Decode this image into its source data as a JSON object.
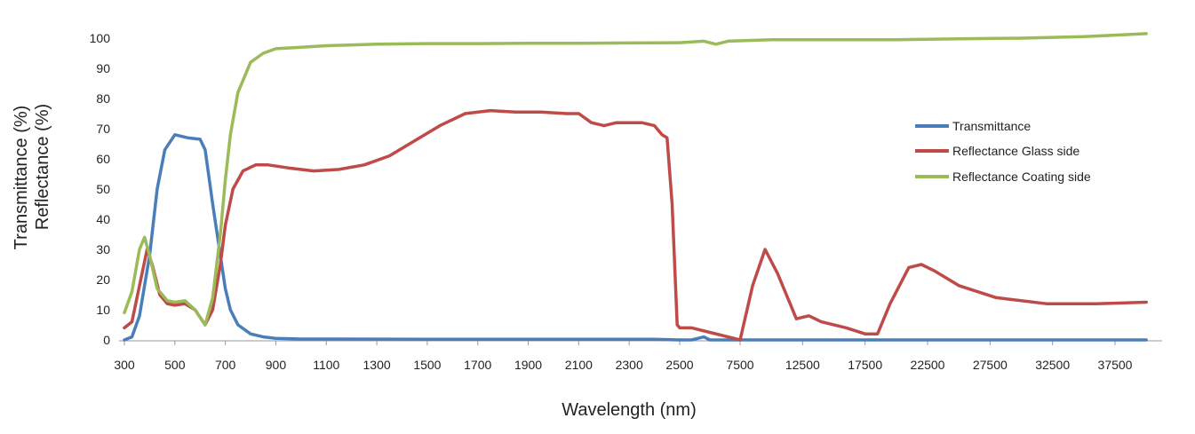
{
  "chart_data": {
    "type": "line",
    "xlabel": "Wavelength (nm)",
    "ylabel_lines": [
      "Transmittance (%)",
      "Reflectance (%)"
    ],
    "ylim": [
      0,
      100
    ],
    "y_ticks": [
      0,
      10,
      20,
      30,
      40,
      50,
      60,
      70,
      80,
      90,
      100
    ],
    "x_segments": [
      {
        "from": 300,
        "to": 2500
      },
      {
        "from": 2500,
        "to": 40000
      }
    ],
    "x_tick_labels": [
      "300",
      "500",
      "700",
      "900",
      "1100",
      "1300",
      "1500",
      "1700",
      "1900",
      "2100",
      "2300",
      "2500",
      "7500",
      "12500",
      "17500",
      "22500",
      "27500",
      "32500",
      "37500"
    ],
    "x_tick_values": [
      300,
      500,
      700,
      900,
      1100,
      1300,
      1500,
      1700,
      1900,
      2100,
      2300,
      2500,
      7500,
      12500,
      17500,
      22500,
      27500,
      32500,
      37500
    ],
    "grid": false,
    "legend_position": "right",
    "series": [
      {
        "name": "Transmittance",
        "color": "#4a7ebb",
        "points": [
          [
            300,
            0
          ],
          [
            330,
            1
          ],
          [
            360,
            8
          ],
          [
            400,
            28
          ],
          [
            430,
            50
          ],
          [
            460,
            63
          ],
          [
            500,
            68
          ],
          [
            550,
            67
          ],
          [
            600,
            66.5
          ],
          [
            620,
            63
          ],
          [
            650,
            45
          ],
          [
            680,
            28
          ],
          [
            700,
            17
          ],
          [
            720,
            10
          ],
          [
            750,
            5
          ],
          [
            800,
            2
          ],
          [
            850,
            1
          ],
          [
            900,
            0.5
          ],
          [
            1000,
            0.3
          ],
          [
            1100,
            0.3
          ],
          [
            1500,
            0.2
          ],
          [
            2000,
            0.2
          ],
          [
            2400,
            0.2
          ],
          [
            2500,
            0
          ],
          [
            3500,
            0
          ],
          [
            4500,
            1
          ],
          [
            5000,
            0
          ],
          [
            10000,
            0
          ],
          [
            20000,
            0
          ],
          [
            30000,
            0
          ],
          [
            40000,
            0
          ]
        ]
      },
      {
        "name": "Reflectance Glass side",
        "color": "#be4b48",
        "points": [
          [
            300,
            4
          ],
          [
            330,
            6
          ],
          [
            360,
            18
          ],
          [
            390,
            30
          ],
          [
            410,
            25
          ],
          [
            440,
            15
          ],
          [
            470,
            12
          ],
          [
            500,
            11.5
          ],
          [
            540,
            12
          ],
          [
            580,
            10
          ],
          [
            620,
            5
          ],
          [
            650,
            10
          ],
          [
            680,
            25
          ],
          [
            700,
            38
          ],
          [
            730,
            50
          ],
          [
            770,
            56
          ],
          [
            820,
            58
          ],
          [
            870,
            58
          ],
          [
            950,
            57
          ],
          [
            1050,
            56
          ],
          [
            1150,
            56.5
          ],
          [
            1250,
            58
          ],
          [
            1350,
            61
          ],
          [
            1450,
            66
          ],
          [
            1550,
            71
          ],
          [
            1650,
            75
          ],
          [
            1750,
            76
          ],
          [
            1850,
            75.5
          ],
          [
            1950,
            75.5
          ],
          [
            2050,
            75
          ],
          [
            2100,
            75
          ],
          [
            2150,
            72
          ],
          [
            2200,
            71
          ],
          [
            2250,
            72
          ],
          [
            2300,
            72
          ],
          [
            2350,
            72
          ],
          [
            2400,
            71
          ],
          [
            2430,
            68
          ],
          [
            2450,
            67
          ],
          [
            2470,
            45
          ],
          [
            2490,
            5
          ],
          [
            2500,
            4
          ],
          [
            3500,
            4
          ],
          [
            5000,
            2.5
          ],
          [
            6500,
            1
          ],
          [
            7500,
            0
          ],
          [
            8500,
            18
          ],
          [
            9500,
            30
          ],
          [
            10500,
            22
          ],
          [
            11500,
            12
          ],
          [
            12000,
            7
          ],
          [
            13000,
            8
          ],
          [
            14000,
            6
          ],
          [
            16000,
            4
          ],
          [
            17500,
            2
          ],
          [
            18500,
            2
          ],
          [
            19500,
            12
          ],
          [
            21000,
            24
          ],
          [
            22000,
            25
          ],
          [
            23000,
            23
          ],
          [
            25000,
            18
          ],
          [
            28000,
            14
          ],
          [
            32000,
            12
          ],
          [
            36000,
            12
          ],
          [
            40000,
            12.5
          ]
        ]
      },
      {
        "name": "Reflectance Coating side",
        "color": "#9bbb59",
        "points": [
          [
            300,
            9
          ],
          [
            330,
            16
          ],
          [
            360,
            30
          ],
          [
            380,
            34
          ],
          [
            400,
            28
          ],
          [
            430,
            17
          ],
          [
            470,
            13
          ],
          [
            500,
            12.5
          ],
          [
            540,
            13
          ],
          [
            580,
            10
          ],
          [
            620,
            5
          ],
          [
            650,
            14
          ],
          [
            680,
            35
          ],
          [
            700,
            53
          ],
          [
            720,
            68
          ],
          [
            750,
            82
          ],
          [
            800,
            92
          ],
          [
            850,
            95
          ],
          [
            900,
            96.5
          ],
          [
            1000,
            97
          ],
          [
            1100,
            97.5
          ],
          [
            1300,
            98
          ],
          [
            1500,
            98.2
          ],
          [
            1700,
            98.2
          ],
          [
            1900,
            98.3
          ],
          [
            2100,
            98.3
          ],
          [
            2300,
            98.4
          ],
          [
            2500,
            98.5
          ],
          [
            4500,
            99
          ],
          [
            5500,
            98
          ],
          [
            6500,
            99
          ],
          [
            10000,
            99.5
          ],
          [
            15000,
            99.5
          ],
          [
            20000,
            99.5
          ],
          [
            25000,
            99.8
          ],
          [
            30000,
            100
          ],
          [
            35000,
            100.5
          ],
          [
            40000,
            101.5
          ]
        ]
      }
    ]
  }
}
